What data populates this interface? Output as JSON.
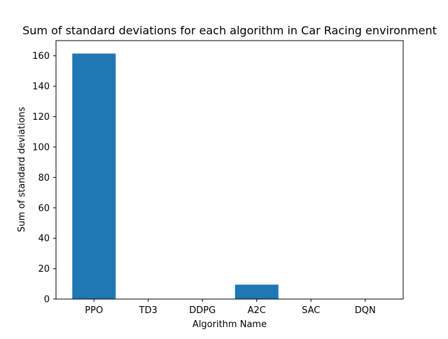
{
  "chart_data": {
    "type": "bar",
    "title": "Sum of standard deviations for each algorithm in Car Racing environment",
    "xlabel": "Algorithm Name",
    "ylabel": "Sum of standard deviations",
    "categories": [
      "PPO",
      "TD3",
      "DDPG",
      "A2C",
      "SAC",
      "DQN"
    ],
    "values": [
      161.5,
      0,
      0,
      9.5,
      0,
      0
    ],
    "ylim": [
      0,
      170
    ],
    "yticks": [
      0,
      20,
      40,
      60,
      80,
      100,
      120,
      140,
      160
    ],
    "grid": false,
    "colors": {
      "bar": "#1f77b4",
      "axis": "#000000",
      "background": "#ffffff"
    }
  }
}
